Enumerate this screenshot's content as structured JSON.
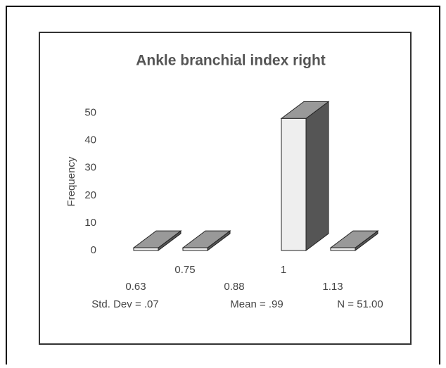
{
  "chart_data": {
    "type": "bar3d",
    "title": "Ankle branchial index right",
    "y_label": "Frequency",
    "categories": [
      "0.63",
      "0.75",
      "0.88",
      "1",
      "1.13"
    ],
    "values": [
      1,
      1,
      0,
      48,
      1
    ],
    "ylim": [
      0,
      55
    ],
    "yticks": [
      0,
      10,
      20,
      30,
      40,
      50
    ],
    "grid": false,
    "color": "#eeeeee",
    "annotations": [
      "Std. Dev = .07",
      "Mean = .99",
      "N = 51.00"
    ]
  }
}
